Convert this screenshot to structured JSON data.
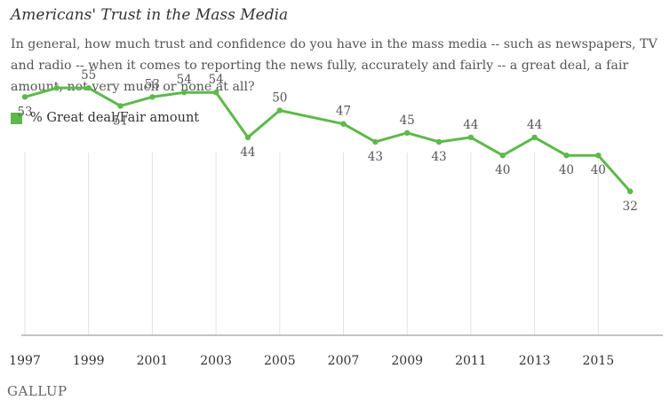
{
  "header": {
    "title": "Americans' Trust in the Mass Media",
    "subtitle": "In general, how much trust and confidence do you have in the mass media -- such as newspapers, TV and radio -- when it comes to reporting the news fully, accurately and fairly -- a great deal, a fair amount, not very much or none at all?"
  },
  "legend": {
    "label": "% Great deal/Fair amount",
    "color": "#5db94a"
  },
  "footer": {
    "logo_text": "GALLUP"
  },
  "chart_data": {
    "type": "line",
    "title": "Americans' Trust in the Mass Media",
    "xlabel": "",
    "ylabel": "",
    "grid": "vertical",
    "legend_position": "top-left",
    "x_ticks": [
      "1997",
      "1999",
      "2001",
      "2003",
      "2005",
      "2007",
      "2009",
      "2011",
      "2013",
      "2015"
    ],
    "ylim": [
      0,
      60
    ],
    "series": [
      {
        "name": "% Great deal/Fair amount",
        "color": "#5db94a",
        "x": [
          1997,
          1998,
          1999,
          2000,
          2001,
          2002,
          2003,
          2004,
          2005,
          2007,
          2008,
          2009,
          2010,
          2011,
          2012,
          2013,
          2014,
          2015,
          2016
        ],
        "values": [
          53,
          55,
          55,
          51,
          53,
          54,
          54,
          44,
          50,
          47,
          43,
          45,
          43,
          44,
          40,
          44,
          40,
          40,
          32
        ],
        "labels": [
          "53",
          "",
          "55",
          "51",
          "53",
          "54",
          "54",
          "44",
          "50",
          "47",
          "43",
          "45",
          "43",
          "44",
          "40",
          "44",
          "40",
          "40",
          "32"
        ]
      }
    ]
  }
}
